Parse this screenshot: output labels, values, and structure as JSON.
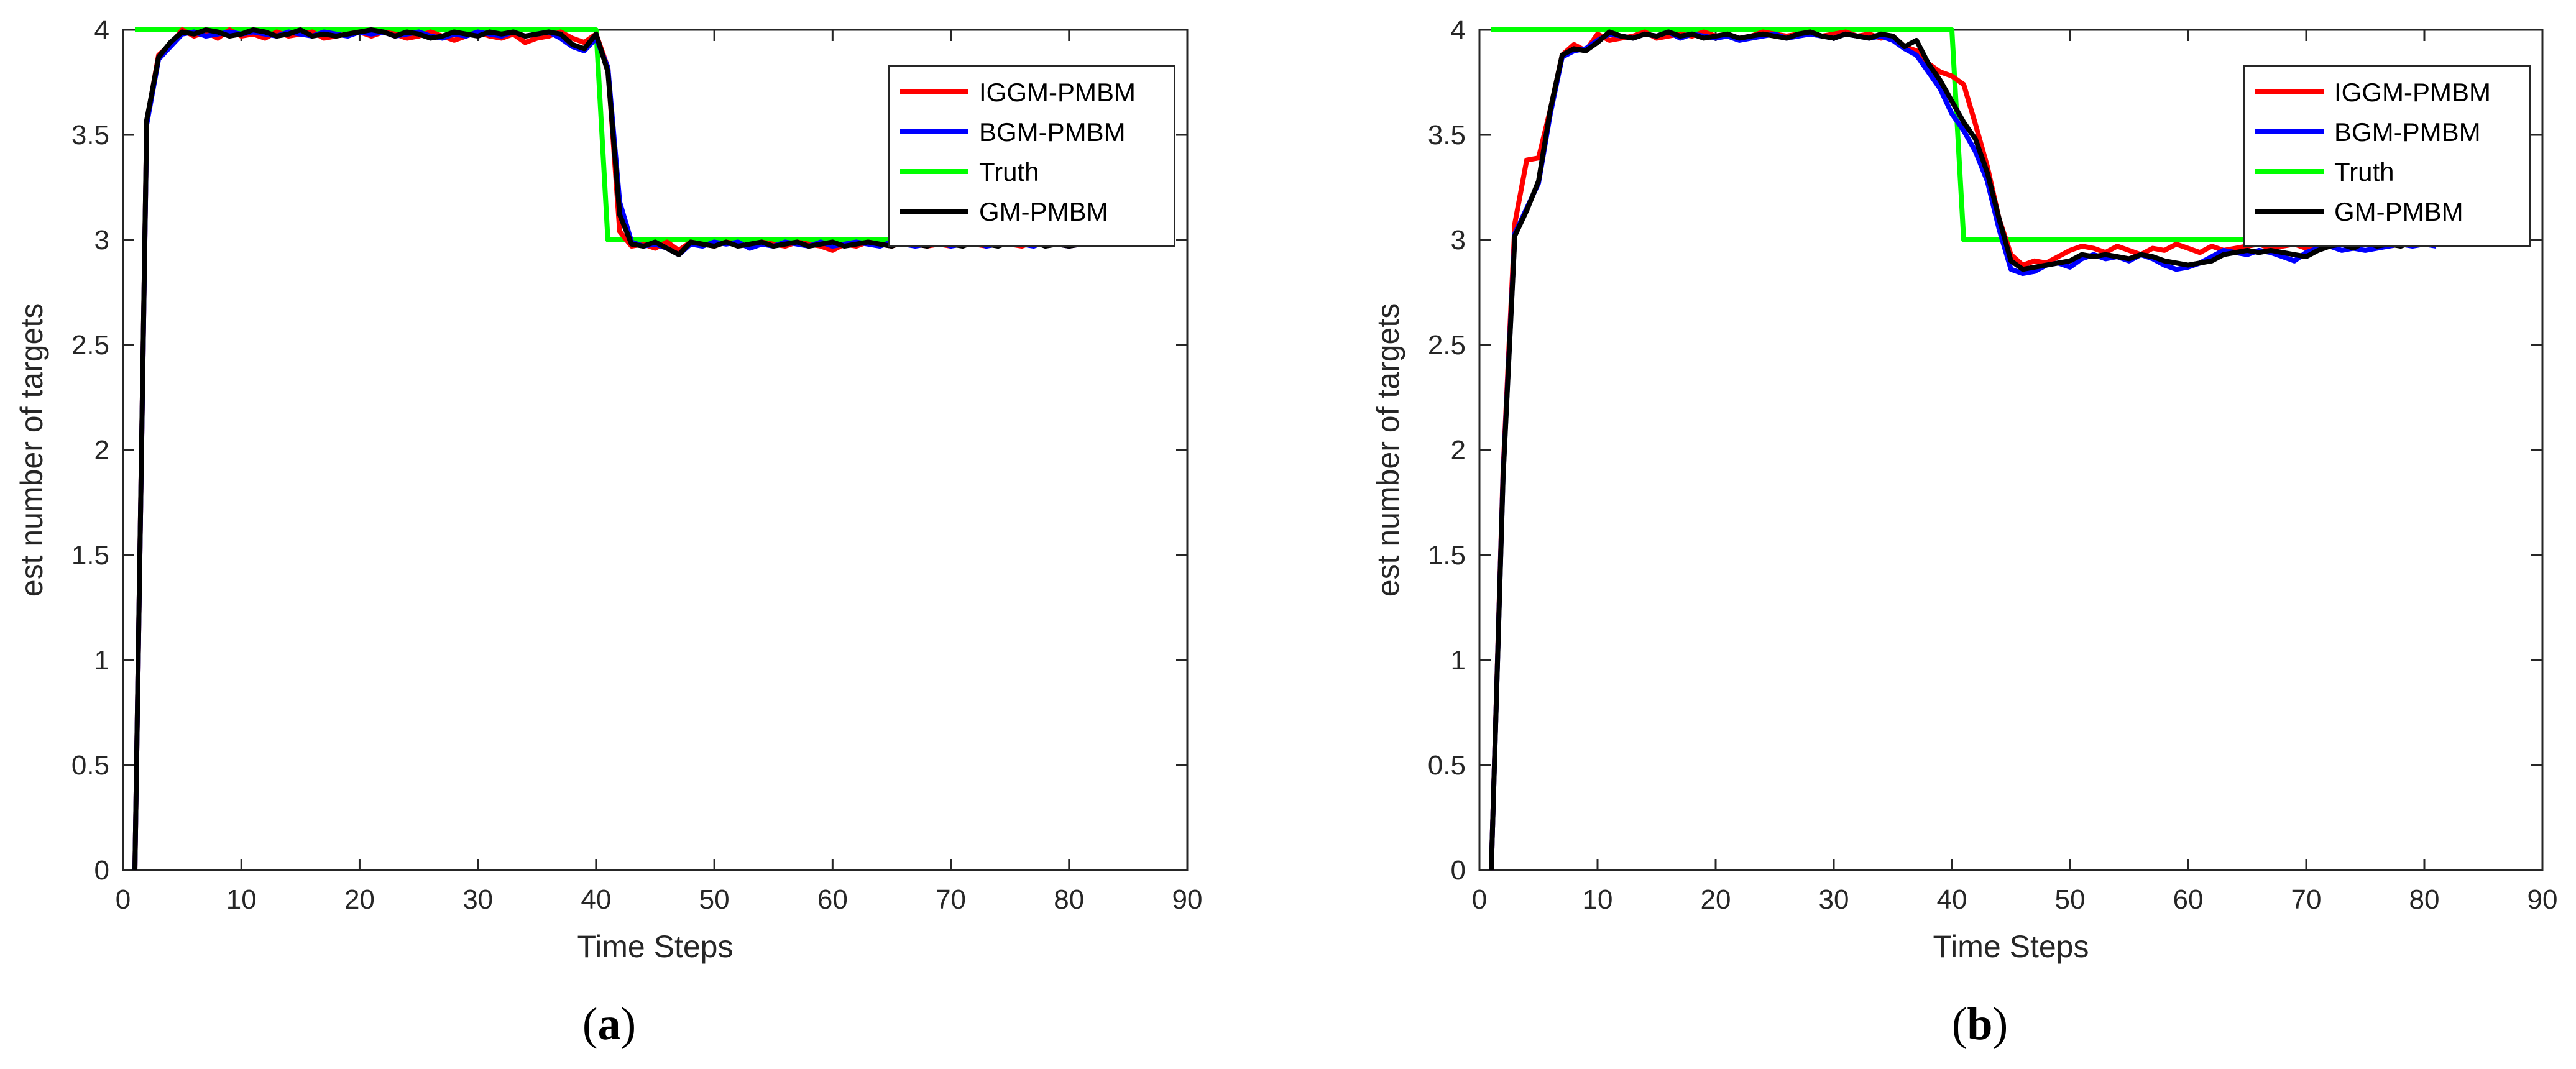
{
  "chart_data": [
    {
      "id": "a",
      "type": "line",
      "caption_open": "(",
      "caption_letter": "a",
      "caption_close": ")",
      "xlabel": "Time Steps",
      "ylabel": "est number of targets",
      "xlim": [
        0,
        90
      ],
      "ylim": [
        0,
        4
      ],
      "xticks": [
        0,
        10,
        20,
        30,
        40,
        50,
        60,
        70,
        80,
        90
      ],
      "yticks": [
        0,
        0.5,
        1,
        1.5,
        2,
        2.5,
        3,
        3.5,
        4
      ],
      "grid": false,
      "legend_position": "top-right",
      "x_start": 1,
      "series": [
        {
          "name": "IGGM-PMBM",
          "color": "#ff0000",
          "values": [
            0,
            3.56,
            3.88,
            3.93,
            4.0,
            3.97,
            3.99,
            3.96,
            4.0,
            3.97,
            3.98,
            3.96,
            3.99,
            3.97,
            3.98,
            3.99,
            3.96,
            3.97,
            3.98,
            3.99,
            3.97,
            3.99,
            3.98,
            3.96,
            3.97,
            3.99,
            3.97,
            3.95,
            3.97,
            3.99,
            3.97,
            3.96,
            3.98,
            3.94,
            3.96,
            3.97,
            3.99,
            3.96,
            3.94,
            3.98,
            3.82,
            3.04,
            2.97,
            2.98,
            2.96,
            2.99,
            2.95,
            2.99,
            2.98,
            2.97,
            2.99,
            2.98,
            2.97,
            2.99,
            2.98,
            2.97,
            2.99,
            2.98,
            2.97,
            2.95,
            2.98,
            2.97,
            2.99,
            2.98,
            2.97,
            2.99,
            2.98,
            2.97,
            2.98,
            2.97,
            2.99,
            2.98,
            2.97,
            2.99,
            2.98,
            2.97,
            2.99,
            2.99,
            2.98,
            2.97,
            2.98
          ]
        },
        {
          "name": "BGM-PMBM",
          "color": "#0000ff",
          "values": [
            0,
            3.55,
            3.86,
            3.92,
            3.98,
            3.99,
            3.97,
            3.98,
            3.99,
            3.98,
            3.99,
            3.98,
            3.97,
            3.99,
            3.98,
            3.97,
            3.99,
            3.98,
            3.97,
            3.99,
            3.98,
            3.99,
            3.97,
            3.98,
            3.99,
            3.97,
            3.96,
            3.98,
            3.97,
            3.99,
            3.98,
            3.97,
            3.99,
            3.97,
            3.98,
            3.99,
            3.96,
            3.92,
            3.9,
            3.96,
            3.82,
            3.18,
            2.99,
            2.97,
            2.98,
            2.96,
            2.93,
            2.98,
            2.97,
            2.99,
            2.98,
            2.99,
            2.96,
            2.98,
            2.97,
            2.99,
            2.98,
            2.97,
            2.99,
            2.97,
            2.98,
            2.99,
            2.98,
            2.97,
            2.99,
            2.98,
            2.97,
            2.98,
            2.99,
            2.97,
            2.98,
            2.99,
            2.97,
            2.98,
            2.99,
            2.98,
            2.97,
            2.99,
            2.98,
            2.97,
            2.98
          ]
        },
        {
          "name": "Truth",
          "color": "#00ff00",
          "values": [
            4,
            4,
            4,
            4,
            4,
            4,
            4,
            4,
            4,
            4,
            4,
            4,
            4,
            4,
            4,
            4,
            4,
            4,
            4,
            4,
            4,
            4,
            4,
            4,
            4,
            4,
            4,
            4,
            4,
            4,
            4,
            4,
            4,
            4,
            4,
            4,
            4,
            4,
            4,
            4,
            3,
            3,
            3,
            3,
            3,
            3,
            3,
            3,
            3,
            3,
            3,
            3,
            3,
            3,
            3,
            3,
            3,
            3,
            3,
            3,
            3,
            3,
            3,
            3,
            3,
            3,
            3,
            3,
            3,
            3,
            3,
            3,
            3,
            3,
            3,
            3,
            3,
            3,
            3,
            3,
            3
          ]
        },
        {
          "name": "GM-PMBM",
          "color": "#000000",
          "values": [
            0,
            3.57,
            3.87,
            3.94,
            3.99,
            3.98,
            4.0,
            3.99,
            3.97,
            3.98,
            4.0,
            3.99,
            3.97,
            3.98,
            4.0,
            3.97,
            3.98,
            3.97,
            3.98,
            3.99,
            4.0,
            3.99,
            3.97,
            3.99,
            3.98,
            3.96,
            3.97,
            3.99,
            3.98,
            3.97,
            3.99,
            3.98,
            3.99,
            3.97,
            3.98,
            3.99,
            3.98,
            3.93,
            3.91,
            3.98,
            3.8,
            3.12,
            2.98,
            2.97,
            2.99,
            2.96,
            2.93,
            2.99,
            2.98,
            2.97,
            2.99,
            2.97,
            2.98,
            2.99,
            2.97,
            2.98,
            2.99,
            2.97,
            2.98,
            2.99,
            2.97,
            2.98,
            2.99,
            2.98,
            2.97,
            2.99,
            2.98,
            2.97,
            2.99,
            2.98,
            2.97,
            2.99,
            2.98,
            2.97,
            2.99,
            2.98,
            2.99,
            2.97,
            2.98,
            2.97,
            2.98
          ]
        }
      ]
    },
    {
      "id": "b",
      "type": "line",
      "caption_open": "(",
      "caption_letter": "b",
      "caption_close": ")",
      "xlabel": "Time Steps",
      "ylabel": "est number of targets",
      "xlim": [
        0,
        90
      ],
      "ylim": [
        0,
        4
      ],
      "xticks": [
        0,
        10,
        20,
        30,
        40,
        50,
        60,
        70,
        80,
        90
      ],
      "yticks": [
        0,
        0.5,
        1,
        1.5,
        2,
        2.5,
        3,
        3.5,
        4
      ],
      "grid": false,
      "legend_position": "top-right",
      "x_start": 1,
      "series": [
        {
          "name": "IGGM-PMBM",
          "color": "#ff0000",
          "values": [
            0,
            1.9,
            3.08,
            3.38,
            3.39,
            3.62,
            3.88,
            3.93,
            3.9,
            3.98,
            3.95,
            3.96,
            3.97,
            3.99,
            3.96,
            3.97,
            3.98,
            3.97,
            3.99,
            3.97,
            3.98,
            3.96,
            3.97,
            3.99,
            3.98,
            3.97,
            3.98,
            3.99,
            3.97,
            3.98,
            3.99,
            3.97,
            3.98,
            3.96,
            3.97,
            3.92,
            3.9,
            3.84,
            3.8,
            3.78,
            3.74,
            3.55,
            3.35,
            3.1,
            2.93,
            2.88,
            2.9,
            2.89,
            2.92,
            2.95,
            2.97,
            2.96,
            2.94,
            2.97,
            2.95,
            2.93,
            2.96,
            2.95,
            2.98,
            2.96,
            2.94,
            2.97,
            2.95,
            2.96,
            2.97,
            2.98,
            2.96,
            2.97,
            2.98,
            2.96,
            2.98,
            2.97,
            2.98,
            2.97,
            2.99,
            2.98,
            2.97,
            2.98,
            2.99,
            2.98,
            2.98
          ]
        },
        {
          "name": "BGM-PMBM",
          "color": "#0000ff",
          "values": [
            0,
            1.88,
            3.03,
            3.15,
            3.27,
            3.6,
            3.87,
            3.9,
            3.91,
            3.95,
            3.98,
            3.97,
            3.96,
            3.98,
            3.97,
            3.99,
            3.96,
            3.98,
            3.97,
            3.96,
            3.97,
            3.95,
            3.96,
            3.97,
            3.98,
            3.96,
            3.97,
            3.98,
            3.97,
            3.96,
            3.98,
            3.97,
            3.96,
            3.97,
            3.95,
            3.91,
            3.88,
            3.8,
            3.72,
            3.6,
            3.52,
            3.42,
            3.28,
            3.05,
            2.86,
            2.84,
            2.85,
            2.88,
            2.89,
            2.87,
            2.91,
            2.93,
            2.91,
            2.92,
            2.9,
            2.93,
            2.91,
            2.88,
            2.86,
            2.87,
            2.89,
            2.92,
            2.95,
            2.94,
            2.93,
            2.95,
            2.94,
            2.92,
            2.9,
            2.94,
            2.96,
            2.97,
            2.95,
            2.96,
            2.95,
            2.96,
            2.97,
            2.98,
            2.97,
            2.98,
            2.97
          ]
        },
        {
          "name": "Truth",
          "color": "#00ff00",
          "values": [
            4,
            4,
            4,
            4,
            4,
            4,
            4,
            4,
            4,
            4,
            4,
            4,
            4,
            4,
            4,
            4,
            4,
            4,
            4,
            4,
            4,
            4,
            4,
            4,
            4,
            4,
            4,
            4,
            4,
            4,
            4,
            4,
            4,
            4,
            4,
            4,
            4,
            4,
            4,
            4,
            3,
            3,
            3,
            3,
            3,
            3,
            3,
            3,
            3,
            3,
            3,
            3,
            3,
            3,
            3,
            3,
            3,
            3,
            3,
            3,
            3,
            3,
            3,
            3,
            3,
            3,
            3,
            3,
            3,
            3,
            3,
            3,
            3,
            3,
            3,
            3,
            3,
            3,
            3,
            3,
            3
          ]
        },
        {
          "name": "GM-PMBM",
          "color": "#000000",
          "values": [
            0,
            1.87,
            3.02,
            3.14,
            3.28,
            3.62,
            3.88,
            3.91,
            3.9,
            3.94,
            3.99,
            3.97,
            3.96,
            3.98,
            3.97,
            3.99,
            3.97,
            3.98,
            3.96,
            3.97,
            3.98,
            3.96,
            3.97,
            3.98,
            3.97,
            3.96,
            3.98,
            3.99,
            3.97,
            3.96,
            3.98,
            3.97,
            3.96,
            3.98,
            3.97,
            3.92,
            3.95,
            3.84,
            3.76,
            3.66,
            3.56,
            3.48,
            3.32,
            3.1,
            2.9,
            2.86,
            2.87,
            2.88,
            2.89,
            2.9,
            2.93,
            2.92,
            2.93,
            2.92,
            2.91,
            2.93,
            2.92,
            2.9,
            2.89,
            2.88,
            2.89,
            2.9,
            2.93,
            2.94,
            2.95,
            2.94,
            2.95,
            2.94,
            2.93,
            2.92,
            2.95,
            2.97,
            2.98,
            2.96,
            2.99,
            2.97,
            2.98,
            2.97,
            2.99,
            2.98,
            2.98
          ]
        }
      ]
    }
  ]
}
